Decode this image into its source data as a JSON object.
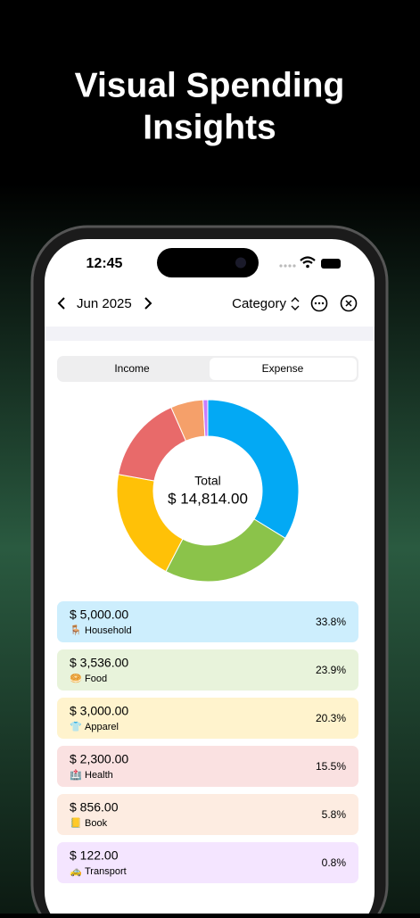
{
  "header": {
    "title_lines": [
      "Visual Spending",
      "Insights"
    ]
  },
  "status_bar": {
    "time": "12:45"
  },
  "toolbar": {
    "month": "Jun 2025",
    "grouping": "Category"
  },
  "tabs": [
    "Income",
    "Expense"
  ],
  "chart_data": {
    "type": "pie",
    "center_label": "Total",
    "center_value": "$ 14,814.00",
    "categories": [
      "Household",
      "Food",
      "Apparel",
      "Health",
      "Book",
      "Transport"
    ],
    "icons": [
      "🪑",
      "🥯",
      "👕",
      "🏥",
      "📒",
      "🚕"
    ],
    "values": [
      5000,
      3536,
      3000,
      2300,
      856,
      122
    ],
    "value_labels": [
      "$ 5,000.00",
      "$ 3,536.00",
      "$ 3,000.00",
      "$ 2,300.00",
      "$ 856.00",
      "$ 122.00"
    ],
    "percent_labels": [
      "33.8%",
      "23.9%",
      "20.3%",
      "15.5%",
      "5.8%",
      "0.8%"
    ],
    "colors": [
      "#03a9f4",
      "#8bc34a",
      "#ffc107",
      "#e86a6a",
      "#f5a06a",
      "#c77dff"
    ]
  }
}
